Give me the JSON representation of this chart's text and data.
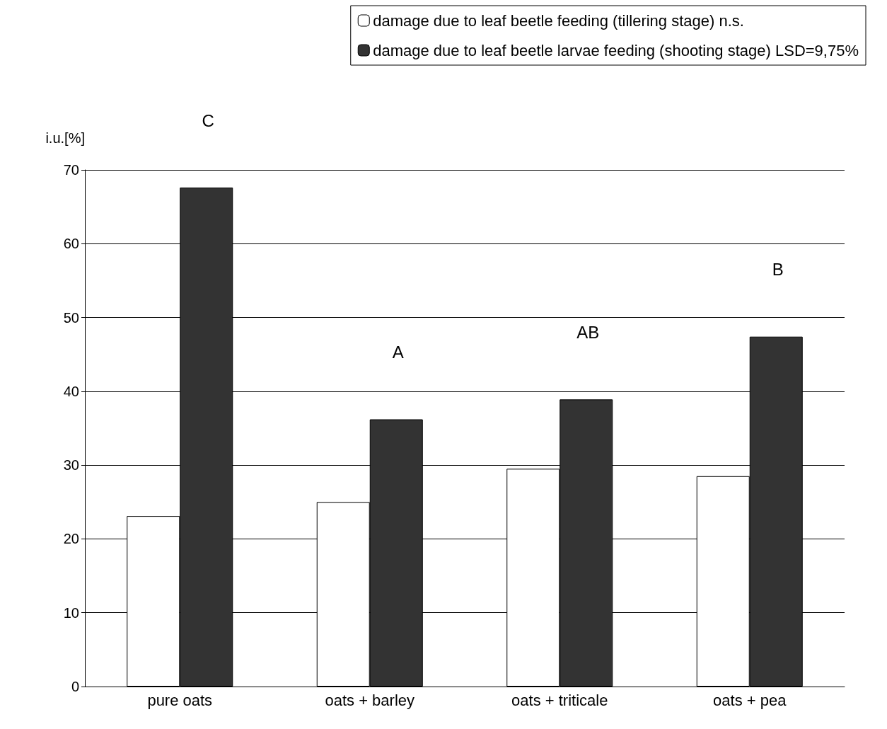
{
  "chart_data": {
    "type": "bar",
    "ylabel": "i.u.[%]",
    "categories": [
      "pure oats",
      "oats + barley",
      "oats + triticale",
      "oats + pea"
    ],
    "series": [
      {
        "name": "damage due to leaf beetle feeding (tillering stage) n.s.",
        "color": "#ffffff",
        "values": [
          23.1,
          25.0,
          29.5,
          28.5
        ]
      },
      {
        "name": "damage due to leaf beetle larvae feeding (shooting stage) LSD=9,75%",
        "color": "#333333",
        "values": [
          67.6,
          36.2,
          38.9,
          47.4
        ]
      }
    ],
    "ylim": [
      0,
      70
    ],
    "yticks": [
      0,
      10,
      20,
      30,
      40,
      50,
      60,
      70
    ],
    "grid": "y",
    "legend": "top right",
    "annotations": [
      "C",
      "A",
      "AB",
      "B"
    ]
  }
}
